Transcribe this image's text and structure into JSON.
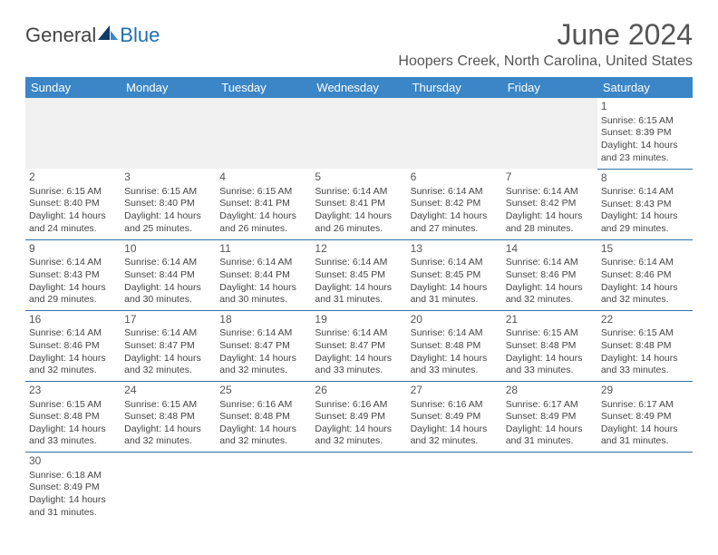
{
  "logo": {
    "text_dark": "General",
    "text_blue": "Blue"
  },
  "title": "June 2024",
  "location": "Hoopers Creek, North Carolina, United States",
  "colors": {
    "header_bg": "#3b86c6",
    "header_text": "#ffffff",
    "rule": "#2f6fa8",
    "blank_bg": "#f0f0f0",
    "text": "#444444",
    "logo_blue": "#1f6fb2"
  },
  "day_headers": [
    "Sunday",
    "Monday",
    "Tuesday",
    "Wednesday",
    "Thursday",
    "Friday",
    "Saturday"
  ],
  "weeks": [
    [
      null,
      null,
      null,
      null,
      null,
      null,
      {
        "n": "1",
        "sr": "6:15 AM",
        "ss": "8:39 PM",
        "dh": "14",
        "dm": "23"
      }
    ],
    [
      {
        "n": "2",
        "sr": "6:15 AM",
        "ss": "8:40 PM",
        "dh": "14",
        "dm": "24"
      },
      {
        "n": "3",
        "sr": "6:15 AM",
        "ss": "8:40 PM",
        "dh": "14",
        "dm": "25"
      },
      {
        "n": "4",
        "sr": "6:15 AM",
        "ss": "8:41 PM",
        "dh": "14",
        "dm": "26"
      },
      {
        "n": "5",
        "sr": "6:14 AM",
        "ss": "8:41 PM",
        "dh": "14",
        "dm": "26"
      },
      {
        "n": "6",
        "sr": "6:14 AM",
        "ss": "8:42 PM",
        "dh": "14",
        "dm": "27"
      },
      {
        "n": "7",
        "sr": "6:14 AM",
        "ss": "8:42 PM",
        "dh": "14",
        "dm": "28"
      },
      {
        "n": "8",
        "sr": "6:14 AM",
        "ss": "8:43 PM",
        "dh": "14",
        "dm": "29"
      }
    ],
    [
      {
        "n": "9",
        "sr": "6:14 AM",
        "ss": "8:43 PM",
        "dh": "14",
        "dm": "29"
      },
      {
        "n": "10",
        "sr": "6:14 AM",
        "ss": "8:44 PM",
        "dh": "14",
        "dm": "30"
      },
      {
        "n": "11",
        "sr": "6:14 AM",
        "ss": "8:44 PM",
        "dh": "14",
        "dm": "30"
      },
      {
        "n": "12",
        "sr": "6:14 AM",
        "ss": "8:45 PM",
        "dh": "14",
        "dm": "31"
      },
      {
        "n": "13",
        "sr": "6:14 AM",
        "ss": "8:45 PM",
        "dh": "14",
        "dm": "31"
      },
      {
        "n": "14",
        "sr": "6:14 AM",
        "ss": "8:46 PM",
        "dh": "14",
        "dm": "32"
      },
      {
        "n": "15",
        "sr": "6:14 AM",
        "ss": "8:46 PM",
        "dh": "14",
        "dm": "32"
      }
    ],
    [
      {
        "n": "16",
        "sr": "6:14 AM",
        "ss": "8:46 PM",
        "dh": "14",
        "dm": "32"
      },
      {
        "n": "17",
        "sr": "6:14 AM",
        "ss": "8:47 PM",
        "dh": "14",
        "dm": "32"
      },
      {
        "n": "18",
        "sr": "6:14 AM",
        "ss": "8:47 PM",
        "dh": "14",
        "dm": "32"
      },
      {
        "n": "19",
        "sr": "6:14 AM",
        "ss": "8:47 PM",
        "dh": "14",
        "dm": "33"
      },
      {
        "n": "20",
        "sr": "6:14 AM",
        "ss": "8:48 PM",
        "dh": "14",
        "dm": "33"
      },
      {
        "n": "21",
        "sr": "6:15 AM",
        "ss": "8:48 PM",
        "dh": "14",
        "dm": "33"
      },
      {
        "n": "22",
        "sr": "6:15 AM",
        "ss": "8:48 PM",
        "dh": "14",
        "dm": "33"
      }
    ],
    [
      {
        "n": "23",
        "sr": "6:15 AM",
        "ss": "8:48 PM",
        "dh": "14",
        "dm": "33"
      },
      {
        "n": "24",
        "sr": "6:15 AM",
        "ss": "8:48 PM",
        "dh": "14",
        "dm": "32"
      },
      {
        "n": "25",
        "sr": "6:16 AM",
        "ss": "8:48 PM",
        "dh": "14",
        "dm": "32"
      },
      {
        "n": "26",
        "sr": "6:16 AM",
        "ss": "8:49 PM",
        "dh": "14",
        "dm": "32"
      },
      {
        "n": "27",
        "sr": "6:16 AM",
        "ss": "8:49 PM",
        "dh": "14",
        "dm": "32"
      },
      {
        "n": "28",
        "sr": "6:17 AM",
        "ss": "8:49 PM",
        "dh": "14",
        "dm": "31"
      },
      {
        "n": "29",
        "sr": "6:17 AM",
        "ss": "8:49 PM",
        "dh": "14",
        "dm": "31"
      }
    ],
    [
      {
        "n": "30",
        "sr": "6:18 AM",
        "ss": "8:49 PM",
        "dh": "14",
        "dm": "31"
      },
      null,
      null,
      null,
      null,
      null,
      null
    ]
  ],
  "labels": {
    "sunrise": "Sunrise:",
    "sunset": "Sunset:",
    "daylight_prefix": "Daylight:",
    "hours_word": "hours",
    "and_word": "and",
    "minutes_word": "minutes."
  }
}
